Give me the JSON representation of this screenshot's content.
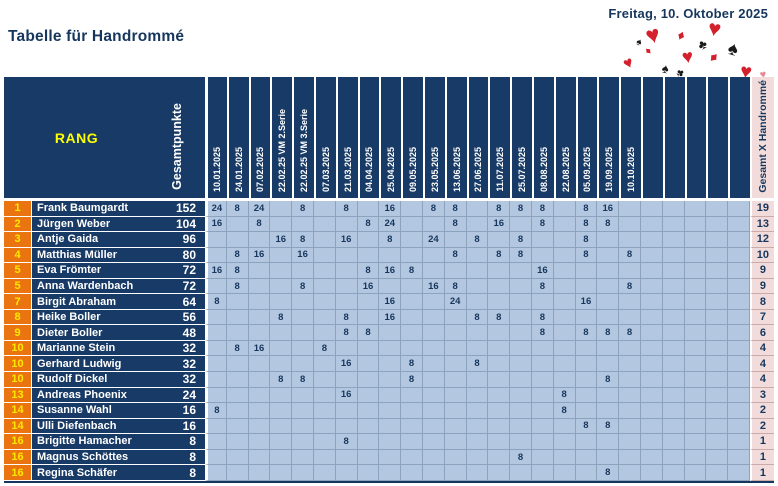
{
  "page": {
    "date_line": "Freitag, 10. Oktober 2025",
    "title": "Tabelle für Handrommé"
  },
  "decoration": {
    "suits": [
      {
        "glyph": "♥",
        "color": "#D41F2C"
      },
      {
        "glyph": "♥",
        "color": "#D41F2C"
      },
      {
        "glyph": "♦",
        "color": "#D41F2C"
      },
      {
        "glyph": "♠",
        "color": "#1A1A1A"
      },
      {
        "glyph": "♥",
        "color": "#D41F2C"
      },
      {
        "glyph": "♦",
        "color": "#D41F2C"
      },
      {
        "glyph": "♣",
        "color": "#1A1A1A"
      },
      {
        "glyph": "♥",
        "color": "#D41F2C"
      },
      {
        "glyph": "♠",
        "color": "#1A1A1A"
      },
      {
        "glyph": "♦",
        "color": "#D41F2C"
      },
      {
        "glyph": "♥",
        "color": "#D41F2C"
      },
      {
        "glyph": "♣",
        "color": "#1A1A1A"
      },
      {
        "glyph": "♠",
        "color": "#1A1A1A"
      },
      {
        "glyph": "♥",
        "color": "#E8888F"
      }
    ]
  },
  "colors": {
    "navy": "#173A66",
    "orange": "#E97410",
    "rank_yellow": "#FFE800",
    "rang_yellow": "#FFFF00",
    "cell_blue": "#B3C8E0",
    "pink": "#F2DCDB",
    "text_navy": "#17365D"
  },
  "table": {
    "rank_header": "RANG",
    "points_header": "Gesamtpunkte",
    "total_header": "Gesamt X Handrommé",
    "date_columns": [
      "10.01.2025",
      "24.01.2025",
      "07.02.2025",
      "22.02.25 VM 2.Serie",
      "22.02.25 VM 3.Serie",
      "07.03.2025",
      "21.03.2025",
      "04.04.2025",
      "25.04.2025",
      "09.05.2025",
      "23.05.2025",
      "13.06.2025",
      "27.06.2025",
      "11.07.2025",
      "25.07.2025",
      "08.08.2025",
      "22.08.2025",
      "05.09.2025",
      "19.09.2025",
      "10.10.2025",
      "",
      "",
      "",
      "",
      ""
    ],
    "rows": [
      {
        "rank": "1",
        "name": "Frank Baumgardt",
        "points": "152",
        "scores": [
          "24",
          "8",
          "24",
          "",
          "8",
          "",
          "8",
          "",
          "16",
          "",
          "8",
          "8",
          "",
          "8",
          "8",
          "8",
          "",
          "8",
          "16",
          "",
          "",
          "",
          "",
          "",
          ""
        ],
        "total": "19"
      },
      {
        "rank": "2",
        "name": "Jürgen Weber",
        "points": "104",
        "scores": [
          "16",
          "",
          "8",
          "",
          "",
          "",
          "",
          "8",
          "24",
          "",
          "",
          "8",
          "",
          "16",
          "",
          "8",
          "",
          "8",
          "8",
          "",
          "",
          "",
          "",
          "",
          ""
        ],
        "total": "13"
      },
      {
        "rank": "3",
        "name": "Antje Gaida",
        "points": "96",
        "scores": [
          "",
          "",
          "",
          "16",
          "8",
          "",
          "16",
          "",
          "8",
          "",
          "24",
          "",
          "8",
          "",
          "8",
          "",
          "",
          "8",
          "",
          "",
          "",
          "",
          "",
          "",
          ""
        ],
        "total": "12"
      },
      {
        "rank": "4",
        "name": "Matthias Müller",
        "points": "80",
        "scores": [
          "",
          "8",
          "16",
          "",
          "16",
          "",
          "",
          "",
          "",
          "",
          "",
          "8",
          "",
          "8",
          "8",
          "",
          "",
          "8",
          "",
          "8",
          "",
          "",
          "",
          "",
          ""
        ],
        "total": "10"
      },
      {
        "rank": "5",
        "name": "Eva Frömter",
        "points": "72",
        "scores": [
          "16",
          "8",
          "",
          "",
          "",
          "",
          "",
          "8",
          "16",
          "8",
          "",
          "",
          "",
          "",
          "",
          "16",
          "",
          "",
          "",
          "",
          "",
          "",
          "",
          "",
          ""
        ],
        "total": "9"
      },
      {
        "rank": "5",
        "name": "Anna Wardenbach",
        "points": "72",
        "scores": [
          "",
          "8",
          "",
          "",
          "8",
          "",
          "",
          "16",
          "",
          "",
          "16",
          "8",
          "",
          "",
          "",
          "8",
          "",
          "",
          "",
          "8",
          "",
          "",
          "",
          "",
          ""
        ],
        "total": "9"
      },
      {
        "rank": "7",
        "name": "Birgit Abraham",
        "points": "64",
        "scores": [
          "8",
          "",
          "",
          "",
          "",
          "",
          "",
          "",
          "16",
          "",
          "",
          "24",
          "",
          "",
          "",
          "",
          "",
          "16",
          "",
          "",
          "",
          "",
          "",
          "",
          ""
        ],
        "total": "8"
      },
      {
        "rank": "8",
        "name": "Heike Boller",
        "points": "56",
        "scores": [
          "",
          "",
          "",
          "8",
          "",
          "",
          "8",
          "",
          "16",
          "",
          "",
          "",
          "8",
          "8",
          "",
          "8",
          "",
          "",
          "",
          "",
          "",
          "",
          "",
          "",
          ""
        ],
        "total": "7"
      },
      {
        "rank": "9",
        "name": "Dieter Boller",
        "points": "48",
        "scores": [
          "",
          "",
          "",
          "",
          "",
          "",
          "8",
          "8",
          "",
          "",
          "",
          "",
          "",
          "",
          "",
          "8",
          "",
          "8",
          "8",
          "8",
          "",
          "",
          "",
          "",
          ""
        ],
        "total": "6"
      },
      {
        "rank": "10",
        "name": "Marianne Stein",
        "points": "32",
        "scores": [
          "",
          "8",
          "16",
          "",
          "",
          "8",
          "",
          "",
          "",
          "",
          "",
          "",
          "",
          "",
          "",
          "",
          "",
          "",
          "",
          "",
          "",
          "",
          "",
          "",
          ""
        ],
        "total": "4"
      },
      {
        "rank": "10",
        "name": "Gerhard Ludwig",
        "points": "32",
        "scores": [
          "",
          "",
          "",
          "",
          "",
          "",
          "16",
          "",
          "",
          "8",
          "",
          "",
          "8",
          "",
          "",
          "",
          "",
          "",
          "",
          "",
          "",
          "",
          "",
          "",
          ""
        ],
        "total": "4"
      },
      {
        "rank": "10",
        "name": "Rudolf Dickel",
        "points": "32",
        "scores": [
          "",
          "",
          "",
          "8",
          "8",
          "",
          "",
          "",
          "",
          "8",
          "",
          "",
          "",
          "",
          "",
          "",
          "",
          "",
          "8",
          "",
          "",
          "",
          "",
          "",
          ""
        ],
        "total": "4"
      },
      {
        "rank": "13",
        "name": "Andreas Phoenix",
        "points": "24",
        "scores": [
          "",
          "",
          "",
          "",
          "",
          "",
          "16",
          "",
          "",
          "",
          "",
          "",
          "",
          "",
          "",
          "",
          "8",
          "",
          "",
          "",
          "",
          "",
          "",
          "",
          ""
        ],
        "total": "3"
      },
      {
        "rank": "14",
        "name": "Susanne Wahl",
        "points": "16",
        "scores": [
          "8",
          "",
          "",
          "",
          "",
          "",
          "",
          "",
          "",
          "",
          "",
          "",
          "",
          "",
          "",
          "",
          "8",
          "",
          "",
          "",
          "",
          "",
          "",
          "",
          ""
        ],
        "total": "2"
      },
      {
        "rank": "14",
        "name": "Ulli Diefenbach",
        "points": "16",
        "scores": [
          "",
          "",
          "",
          "",
          "",
          "",
          "",
          "",
          "",
          "",
          "",
          "",
          "",
          "",
          "",
          "",
          "",
          "8",
          "8",
          "",
          "",
          "",
          "",
          "",
          ""
        ],
        "total": "2"
      },
      {
        "rank": "16",
        "name": "Brigitte Hamacher",
        "points": "8",
        "scores": [
          "",
          "",
          "",
          "",
          "",
          "",
          "8",
          "",
          "",
          "",
          "",
          "",
          "",
          "",
          "",
          "",
          "",
          "",
          "",
          "",
          "",
          "",
          "",
          "",
          ""
        ],
        "total": "1"
      },
      {
        "rank": "16",
        "name": "Magnus Schöttes",
        "points": "8",
        "scores": [
          "",
          "",
          "",
          "",
          "",
          "",
          "",
          "",
          "",
          "",
          "",
          "",
          "",
          "",
          "8",
          "",
          "",
          "",
          "",
          "",
          "",
          "",
          "",
          "",
          ""
        ],
        "total": "1"
      },
      {
        "rank": "16",
        "name": "Regina Schäfer",
        "points": "8",
        "scores": [
          "",
          "",
          "",
          "",
          "",
          "",
          "",
          "",
          "",
          "",
          "",
          "",
          "",
          "",
          "",
          "",
          "",
          "",
          "8",
          "",
          "",
          "",
          "",
          "",
          ""
        ],
        "total": "1"
      }
    ]
  }
}
